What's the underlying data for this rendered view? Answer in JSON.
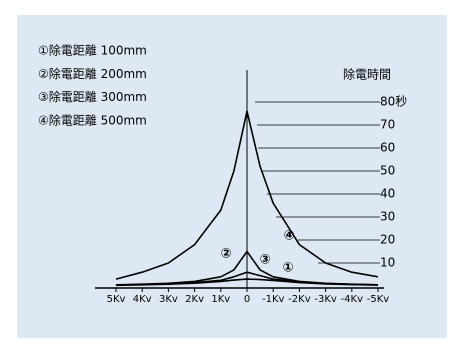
{
  "chart_data": {
    "type": "line",
    "y_label": "除電時間",
    "x": [
      5,
      4,
      3,
      2,
      1,
      0.5,
      0,
      -0.5,
      -1,
      -2,
      -3,
      -4,
      -5
    ],
    "xlim": [
      5,
      -5
    ],
    "xticks": [
      {
        "value": 5,
        "label": "5Kv"
      },
      {
        "value": 4,
        "label": "4Kv"
      },
      {
        "value": 3,
        "label": "3Kv"
      },
      {
        "value": 2,
        "label": "2Kv"
      },
      {
        "value": 1,
        "label": "1Kv"
      },
      0,
      {
        "value": -1,
        "label": "-1Kv"
      },
      {
        "value": -2,
        "label": "-2Kv"
      },
      {
        "value": -3,
        "label": "-3Kv"
      },
      {
        "value": -4,
        "label": "-4Kv"
      },
      {
        "value": -5,
        "label": "-5Kv"
      }
    ],
    "ylim": [
      0,
      80
    ],
    "yticks": [
      {
        "value": 80,
        "label": "80秒"
      },
      70,
      60,
      50,
      40,
      30,
      20,
      10
    ],
    "series": [
      {
        "name": "①除電距離 100mm",
        "marker": "①",
        "color": "#000000",
        "values": [
          0.3,
          0.5,
          0.8,
          1.2,
          2,
          2.6,
          3,
          2.8,
          2.4,
          1.5,
          0.9,
          0.6,
          0.4
        ]
      },
      {
        "name": "②除電距離 200mm",
        "marker": "②",
        "color": "#000000",
        "values": [
          0.5,
          0.8,
          1.2,
          2,
          4,
          7,
          15,
          7,
          4,
          2,
          1.2,
          0.8,
          0.5
        ]
      },
      {
        "name": "③除電距離 300mm",
        "marker": "③",
        "color": "#000000",
        "values": [
          0.4,
          0.6,
          1,
          1.5,
          2.5,
          4,
          6,
          4.5,
          3,
          1.8,
          1.1,
          0.7,
          0.5
        ]
      },
      {
        "name": "④除電距離 500mm",
        "marker": "④",
        "color": "#000000",
        "values": [
          3,
          6,
          10,
          18,
          33,
          50,
          76,
          52,
          36,
          18,
          10,
          6,
          4
        ]
      }
    ]
  }
}
